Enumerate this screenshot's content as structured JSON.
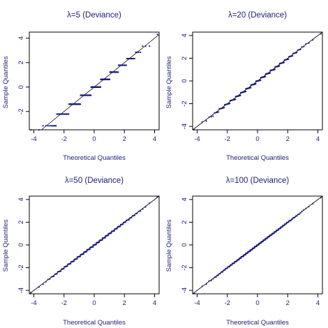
{
  "colors": {
    "points": "#1c1c7a",
    "text": "#1c1c7a",
    "frame": "#000000",
    "reference_line": "#000000"
  },
  "chart_data": [
    {
      "type": "scatter",
      "title": "λ=5 (Deviance)",
      "xlabel": "Theoretical Quantiles",
      "ylabel": "Sample Quantiles",
      "xlim": [
        -4.3,
        4.3
      ],
      "ylim": [
        -3.5,
        4.5
      ],
      "xticks": [
        -4,
        -2,
        0,
        2,
        4
      ],
      "yticks": [
        -2,
        0,
        2,
        4
      ],
      "xtick_labels": [
        "-4",
        "-2",
        "0",
        "2",
        "4"
      ],
      "ytick_labels": [
        "-2",
        "0",
        "2",
        "4"
      ],
      "reference_line": {
        "x": [
          -3.5,
          4.3
        ],
        "y": [
          -3.5,
          4.3
        ]
      },
      "points": {
        "distribution": "poisson",
        "lambda": 5
      },
      "grid": false,
      "legend": "none"
    },
    {
      "type": "scatter",
      "title": "λ=20 (Deviance)",
      "xlabel": "Theoretical Quantiles",
      "ylabel": "Sample Quantiles",
      "xlim": [
        -4.3,
        4.3
      ],
      "ylim": [
        -4.3,
        4.3
      ],
      "xticks": [
        -4,
        -2,
        0,
        2,
        4
      ],
      "yticks": [
        -4,
        -2,
        0,
        2,
        4
      ],
      "xtick_labels": [
        "-4",
        "-2",
        "0",
        "2",
        "4"
      ],
      "ytick_labels": [
        "-4",
        "-2",
        "0",
        "2",
        "4"
      ],
      "reference_line": {
        "x": [
          -4.3,
          4.3
        ],
        "y": [
          -4.3,
          4.3
        ]
      },
      "points": {
        "distribution": "poisson",
        "lambda": 20
      },
      "grid": false,
      "legend": "none"
    },
    {
      "type": "scatter",
      "title": "λ=50 (Deviance)",
      "xlabel": "Theoretical Quantiles",
      "ylabel": "Sample Quantiles",
      "xlim": [
        -4.3,
        4.3
      ],
      "ylim": [
        -4.3,
        4.3
      ],
      "xticks": [
        -4,
        -2,
        0,
        2,
        4
      ],
      "yticks": [
        -4,
        -2,
        0,
        2,
        4
      ],
      "xtick_labels": [
        "-4",
        "-2",
        "0",
        "2",
        "4"
      ],
      "ytick_labels": [
        "-4",
        "-2",
        "0",
        "2",
        "4"
      ],
      "reference_line": {
        "x": [
          -4.3,
          4.3
        ],
        "y": [
          -4.3,
          4.3
        ]
      },
      "points": {
        "distribution": "poisson",
        "lambda": 50
      },
      "grid": false,
      "legend": "none"
    },
    {
      "type": "scatter",
      "title": "λ=100 (Deviance)",
      "xlabel": "Theoretical Quantiles",
      "ylabel": "Sample Quantiles",
      "xlim": [
        -4.3,
        4.3
      ],
      "ylim": [
        -4.3,
        4.3
      ],
      "xticks": [
        -4,
        -2,
        0,
        2,
        4
      ],
      "yticks": [
        -4,
        -2,
        0,
        2,
        4
      ],
      "xtick_labels": [
        "-4",
        "-2",
        "0",
        "2",
        "4"
      ],
      "ytick_labels": [
        "-4",
        "-2",
        "0",
        "2",
        "4"
      ],
      "reference_line": {
        "x": [
          -4.3,
          4.3
        ],
        "y": [
          -4.3,
          4.3
        ]
      },
      "points": {
        "distribution": "poisson",
        "lambda": 100
      },
      "grid": false,
      "legend": "none"
    }
  ]
}
